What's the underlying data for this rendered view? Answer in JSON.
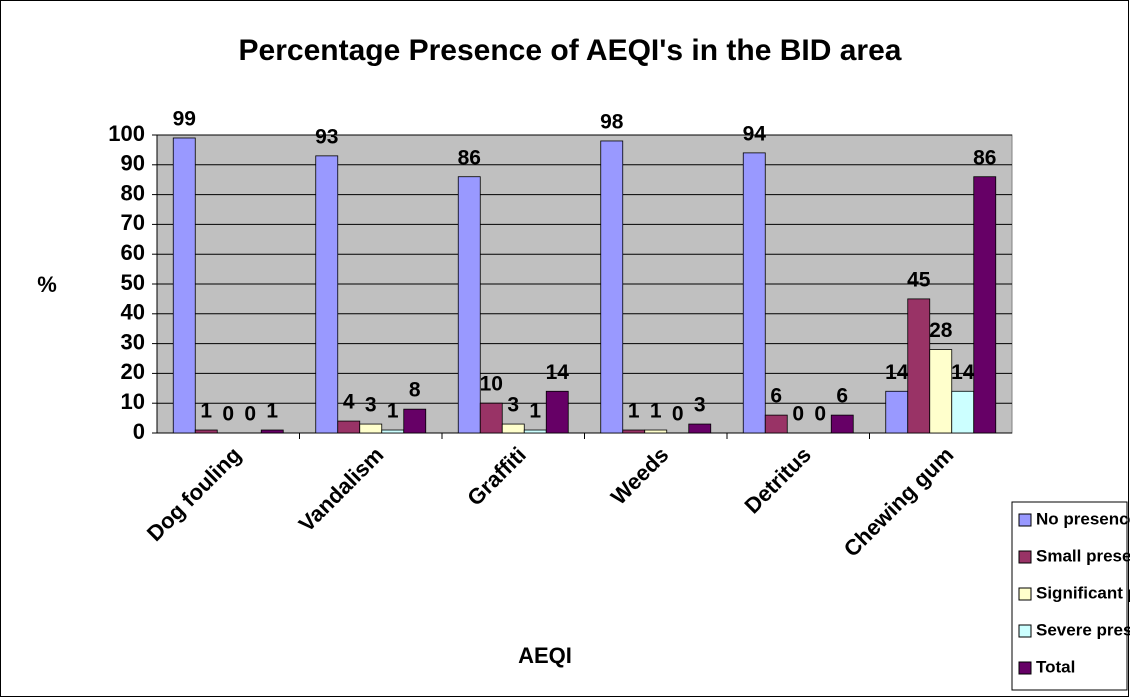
{
  "chart_data": {
    "type": "bar",
    "title": "Percentage Presence of AEQI's in the BID area",
    "x_label": "AEQI",
    "y_label": "%",
    "categories": [
      "Dog fouling",
      "Vandalism",
      "Graffiti",
      "Weeds",
      "Detritus",
      "Chewing gum"
    ],
    "series": [
      {
        "name": "No presence",
        "color": "#9999ff",
        "values": [
          99,
          93,
          86,
          98,
          94,
          14
        ]
      },
      {
        "name": "Small presence",
        "color": "#993366",
        "values": [
          1,
          4,
          10,
          1,
          6,
          45
        ]
      },
      {
        "name": "Significant presence",
        "color": "#ffffcc",
        "values": [
          0,
          3,
          3,
          1,
          0,
          28
        ]
      },
      {
        "name": "Severe presence",
        "color": "#ccffff",
        "values": [
          0,
          1,
          1,
          0,
          0,
          14
        ]
      },
      {
        "name": "Total",
        "color": "#660066",
        "values": [
          1,
          8,
          14,
          3,
          6,
          86
        ]
      }
    ],
    "ylim": [
      0,
      100
    ],
    "yticks": [
      0,
      10,
      20,
      30,
      40,
      50,
      60,
      70,
      80,
      90,
      100
    ],
    "grid": true,
    "legend": "lower right"
  }
}
